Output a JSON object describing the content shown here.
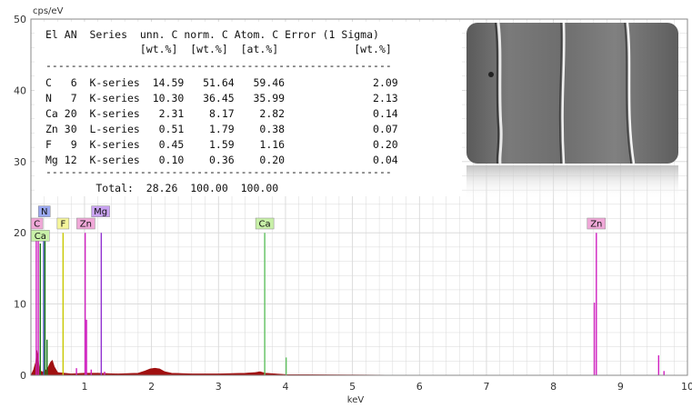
{
  "chart_data": {
    "type": "line",
    "ylabel": "cps/eV",
    "xlabel": "keV",
    "xlim": [
      0.2,
      10
    ],
    "ylim": [
      0,
      50
    ],
    "x_ticks": [
      "1",
      "2",
      "3",
      "4",
      "5",
      "6",
      "7",
      "8",
      "9",
      "10"
    ],
    "y_ticks": [
      "0",
      "10",
      "20",
      "30",
      "40",
      "50"
    ],
    "grid": true,
    "spectrum": [
      [
        0.2,
        0.0
      ],
      [
        0.24,
        0.8
      ],
      [
        0.27,
        1.8
      ],
      [
        0.29,
        3.5
      ],
      [
        0.31,
        2.2
      ],
      [
        0.33,
        0.8
      ],
      [
        0.36,
        0.5
      ],
      [
        0.4,
        0.5
      ],
      [
        0.45,
        1.0
      ],
      [
        0.49,
        1.8
      ],
      [
        0.52,
        2.1
      ],
      [
        0.55,
        1.2
      ],
      [
        0.6,
        0.4
      ],
      [
        0.7,
        0.3
      ],
      [
        0.8,
        0.2
      ],
      [
        1.0,
        0.3
      ],
      [
        1.2,
        0.3
      ],
      [
        1.5,
        0.2
      ],
      [
        1.8,
        0.3
      ],
      [
        1.9,
        0.6
      ],
      [
        1.98,
        0.9
      ],
      [
        2.05,
        1.0
      ],
      [
        2.12,
        0.9
      ],
      [
        2.2,
        0.5
      ],
      [
        2.3,
        0.3
      ],
      [
        2.6,
        0.2
      ],
      [
        3.0,
        0.2
      ],
      [
        3.4,
        0.3
      ],
      [
        3.55,
        0.4
      ],
      [
        3.62,
        0.5
      ],
      [
        3.7,
        0.3
      ],
      [
        4.0,
        0.1
      ],
      [
        5.0,
        0.05
      ],
      [
        6.0,
        0.0
      ],
      [
        10.0,
        0.0
      ]
    ],
    "element_lines": [
      {
        "x": 0.28,
        "y": 19.0,
        "color": "#d020c0"
      },
      {
        "x": 0.31,
        "y": 20.0,
        "color": "#d020c0"
      },
      {
        "x": 0.34,
        "y": 18.5,
        "color": "#1a7a1a"
      },
      {
        "x": 0.39,
        "y": 20.0,
        "color": "#5050c0"
      },
      {
        "x": 0.41,
        "y": 19.0,
        "color": "#1a7a1a"
      },
      {
        "x": 0.44,
        "y": 5.0,
        "color": "#1a7a1a"
      },
      {
        "x": 0.68,
        "y": 20.0,
        "color": "#c8c800"
      },
      {
        "x": 0.88,
        "y": 1.0,
        "color": "#d020c0"
      },
      {
        "x": 1.01,
        "y": 20.0,
        "color": "#d020c0"
      },
      {
        "x": 1.03,
        "y": 7.8,
        "color": "#d020c0"
      },
      {
        "x": 1.1,
        "y": 0.8,
        "color": "#d020c0"
      },
      {
        "x": 1.25,
        "y": 20.0,
        "color": "#9030d0"
      },
      {
        "x": 1.3,
        "y": 0.5,
        "color": "#d020c0"
      },
      {
        "x": 3.69,
        "y": 20.0,
        "color": "#60c060"
      },
      {
        "x": 4.01,
        "y": 2.5,
        "color": "#60c060"
      },
      {
        "x": 8.61,
        "y": 10.2,
        "color": "#d020c0"
      },
      {
        "x": 8.64,
        "y": 20.0,
        "color": "#d020c0"
      },
      {
        "x": 9.57,
        "y": 2.8,
        "color": "#d020c0"
      },
      {
        "x": 9.65,
        "y": 0.6,
        "color": "#d020c0"
      }
    ],
    "peak_labels": [
      {
        "text": "N",
        "x": 0.4,
        "y": 23.0,
        "bg": "#9aa8f0"
      },
      {
        "text": "Mg",
        "x": 1.24,
        "y": 23.0,
        "bg": "#c8a2f0"
      },
      {
        "text": "C",
        "x": 0.29,
        "y": 21.3,
        "bg": "#f0a8d8"
      },
      {
        "text": "F",
        "x": 0.68,
        "y": 21.3,
        "bg": "#f5f59a"
      },
      {
        "text": "Zn",
        "x": 1.02,
        "y": 21.3,
        "bg": "#f0a8d8"
      },
      {
        "text": "Ca",
        "x": 3.69,
        "y": 21.3,
        "bg": "#c8f0a8"
      },
      {
        "text": "Zn",
        "x": 8.64,
        "y": 21.3,
        "bg": "#f0a8d8"
      },
      {
        "text": "Ca",
        "x": 0.34,
        "y": 19.6,
        "bg": "#c8f0a8"
      }
    ],
    "table": {
      "header1": "El AN  Series  unn. C norm. C Atom. C Error (1 Sigma)",
      "header2": "               [wt.%]  [wt.%]  [at.%]            [wt.%]",
      "rule": "-------------------------------------------------------",
      "rows": [
        "C   6  K-series  14.59   51.64   59.46              2.09",
        "N   7  K-series  10.30   36.45   35.99              2.13",
        "Ca 20  K-series   2.31    8.17    2.82              0.14",
        "Zn 30  L-series   0.51    1.79    0.38              0.07",
        "F   9  K-series   0.45    1.59    1.16              0.20",
        "Mg 12  K-series   0.10    0.36    0.20              0.04"
      ],
      "total": "        Total:  28.26  100.00  100.00"
    },
    "colors": {
      "spectrum_fill": "#a01010",
      "grid": "#d8d8d8",
      "axis": "#555555"
    }
  }
}
